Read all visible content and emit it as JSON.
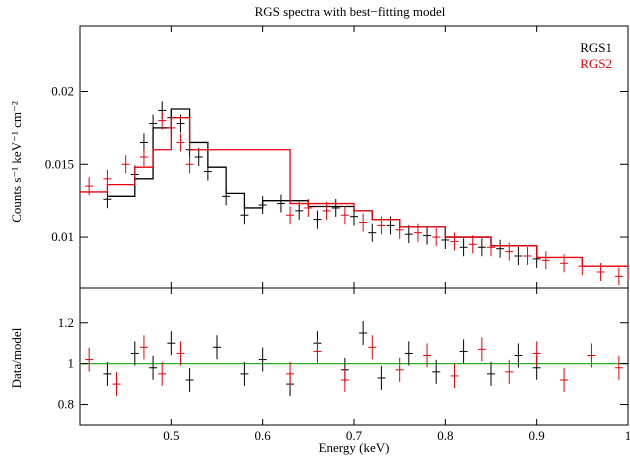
{
  "chart_data": [
    {
      "type": "scatter",
      "panel": "spectrum",
      "title": "RGS spectra with best−fitting model",
      "xlabel": "Energy (keV)",
      "ylabel": "Counts s⁻¹ keV⁻¹ cm⁻²",
      "xlim": [
        0.4,
        1.0
      ],
      "ylim": [
        0.0065,
        0.0245
      ],
      "ytick_values": [
        0.01,
        0.015,
        0.02
      ],
      "ytick_labels": [
        "0.01",
        "0.015",
        "0.02"
      ],
      "legend_position": "top-right",
      "series": [
        {
          "name": "RGS1",
          "color": "#000000",
          "points": [
            [
              0.43,
              0.0126
            ],
            [
              0.46,
              0.0143
            ],
            [
              0.47,
              0.0165
            ],
            [
              0.48,
              0.0178
            ],
            [
              0.49,
              0.0187
            ],
            [
              0.5,
              0.0182
            ],
            [
              0.51,
              0.0178
            ],
            [
              0.52,
              0.016
            ],
            [
              0.53,
              0.0155
            ],
            [
              0.54,
              0.0145
            ],
            [
              0.56,
              0.0128
            ],
            [
              0.58,
              0.0115
            ],
            [
              0.6,
              0.0122
            ],
            [
              0.62,
              0.0123
            ],
            [
              0.64,
              0.0118
            ],
            [
              0.66,
              0.0112
            ],
            [
              0.68,
              0.012
            ],
            [
              0.7,
              0.0114
            ],
            [
              0.72,
              0.0103
            ],
            [
              0.74,
              0.0108
            ],
            [
              0.76,
              0.0102
            ],
            [
              0.78,
              0.0101
            ],
            [
              0.8,
              0.0098
            ],
            [
              0.82,
              0.0093
            ],
            [
              0.84,
              0.0093
            ],
            [
              0.86,
              0.0092
            ],
            [
              0.88,
              0.0087
            ],
            [
              0.9,
              0.0085
            ]
          ],
          "model": [
            [
              0.43,
              0.0128
            ],
            [
              0.46,
              0.014
            ],
            [
              0.48,
              0.0175
            ],
            [
              0.5,
              0.0188
            ],
            [
              0.52,
              0.0165
            ],
            [
              0.54,
              0.0148
            ],
            [
              0.56,
              0.013
            ],
            [
              0.58,
              0.012
            ],
            [
              0.6,
              0.0125
            ],
            [
              0.65,
              0.0121
            ],
            [
              0.7,
              0.0118
            ],
            [
              0.72,
              0.0112
            ],
            [
              0.75,
              0.0107
            ],
            [
              0.8,
              0.01
            ],
            [
              0.85,
              0.0094
            ],
            [
              0.9,
              0.0086
            ]
          ]
        },
        {
          "name": "RGS2",
          "color": "#e8000b",
          "points": [
            [
              0.41,
              0.0135
            ],
            [
              0.43,
              0.014
            ],
            [
              0.45,
              0.015
            ],
            [
              0.47,
              0.0155
            ],
            [
              0.49,
              0.018
            ],
            [
              0.5,
              0.0175
            ],
            [
              0.51,
              0.0165
            ],
            [
              0.52,
              0.015
            ],
            [
              0.63,
              0.0115
            ],
            [
              0.65,
              0.012
            ],
            [
              0.67,
              0.0118
            ],
            [
              0.69,
              0.0115
            ],
            [
              0.71,
              0.011
            ],
            [
              0.73,
              0.0108
            ],
            [
              0.75,
              0.0105
            ],
            [
              0.77,
              0.0103
            ],
            [
              0.79,
              0.01
            ],
            [
              0.81,
              0.0097
            ],
            [
              0.83,
              0.0095
            ],
            [
              0.85,
              0.0093
            ],
            [
              0.87,
              0.009
            ],
            [
              0.89,
              0.0087
            ],
            [
              0.91,
              0.0084
            ],
            [
              0.93,
              0.0082
            ],
            [
              0.95,
              0.008
            ],
            [
              0.97,
              0.0076
            ],
            [
              0.99,
              0.0073
            ]
          ],
          "model": [
            [
              0.4,
              0.0131
            ],
            [
              0.43,
              0.0136
            ],
            [
              0.46,
              0.0148
            ],
            [
              0.48,
              0.016
            ],
            [
              0.5,
              0.0182
            ],
            [
              0.52,
              0.016
            ],
            [
              0.63,
              0.0123
            ],
            [
              0.7,
              0.0118
            ],
            [
              0.72,
              0.0112
            ],
            [
              0.75,
              0.0107
            ],
            [
              0.8,
              0.01
            ],
            [
              0.85,
              0.0094
            ],
            [
              0.9,
              0.0086
            ],
            [
              0.95,
              0.008
            ],
            [
              1.0,
              0.0071
            ]
          ]
        }
      ]
    },
    {
      "type": "scatter",
      "panel": "ratio",
      "xlabel": "Energy (keV)",
      "ylabel": "Data/model",
      "xlim": [
        0.4,
        1.0
      ],
      "ylim": [
        0.7,
        1.37
      ],
      "xtick_values": [
        0.5,
        0.6,
        0.7,
        0.8,
        0.9,
        1.0
      ],
      "xtick_labels": [
        "0.5",
        "0.6",
        "0.7",
        "0.8",
        "0.9",
        "1"
      ],
      "ytick_values": [
        0.8,
        1.0,
        1.2
      ],
      "ytick_labels": [
        "0.8",
        "1",
        "1.2"
      ],
      "reference_line": {
        "y": 1.0,
        "color": "#22b022"
      },
      "series": [
        {
          "name": "RGS1",
          "color": "#000000",
          "points": [
            [
              0.43,
              0.95
            ],
            [
              0.46,
              1.05
            ],
            [
              0.48,
              0.98
            ],
            [
              0.5,
              1.1
            ],
            [
              0.52,
              0.92
            ],
            [
              0.55,
              1.08
            ],
            [
              0.58,
              0.95
            ],
            [
              0.6,
              1.02
            ],
            [
              0.63,
              0.9
            ],
            [
              0.66,
              1.1
            ],
            [
              0.69,
              0.97
            ],
            [
              0.71,
              1.15
            ],
            [
              0.73,
              0.93
            ],
            [
              0.76,
              1.05
            ],
            [
              0.79,
              0.96
            ],
            [
              0.82,
              1.06
            ],
            [
              0.85,
              0.95
            ],
            [
              0.88,
              1.04
            ],
            [
              0.9,
              0.98
            ]
          ]
        },
        {
          "name": "RGS2",
          "color": "#e8000b",
          "points": [
            [
              0.41,
              1.02
            ],
            [
              0.44,
              0.9
            ],
            [
              0.47,
              1.08
            ],
            [
              0.49,
              0.95
            ],
            [
              0.51,
              1.05
            ],
            [
              0.63,
              0.95
            ],
            [
              0.66,
              1.06
            ],
            [
              0.69,
              0.92
            ],
            [
              0.72,
              1.08
            ],
            [
              0.75,
              0.97
            ],
            [
              0.78,
              1.04
            ],
            [
              0.81,
              0.94
            ],
            [
              0.84,
              1.07
            ],
            [
              0.87,
              0.96
            ],
            [
              0.9,
              1.05
            ],
            [
              0.93,
              0.92
            ],
            [
              0.96,
              1.04
            ],
            [
              0.99,
              0.98
            ]
          ]
        }
      ]
    }
  ]
}
